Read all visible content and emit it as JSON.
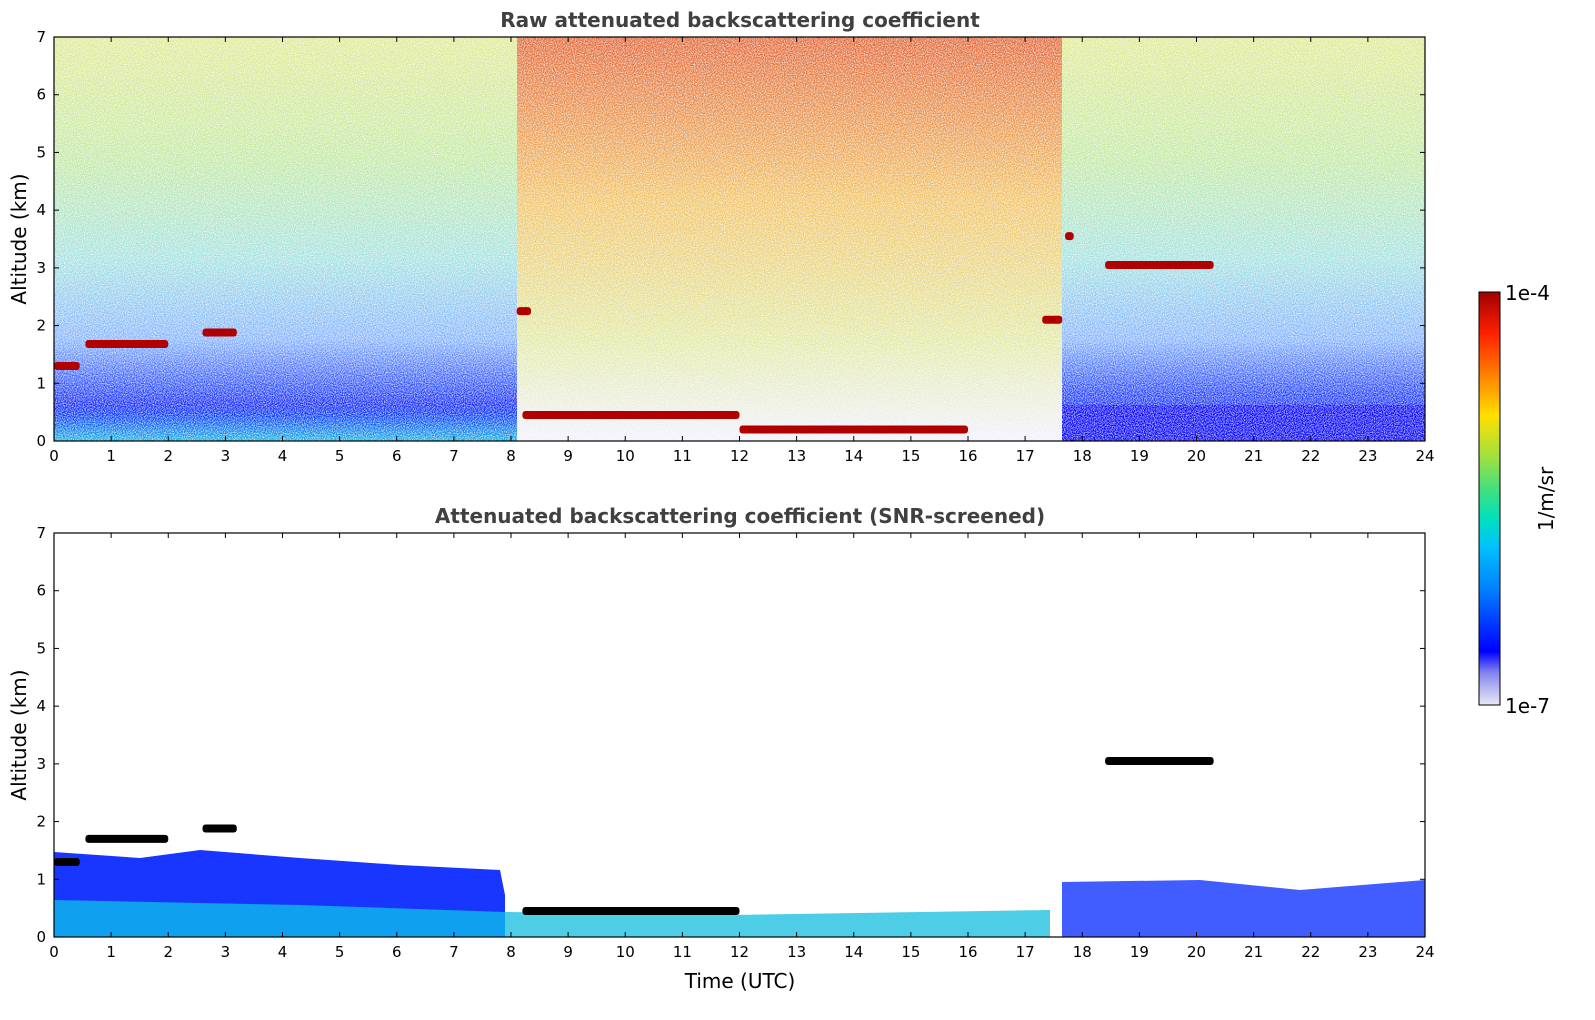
{
  "chart_data": [
    {
      "type": "heatmap",
      "title": "Raw attenuated backscattering coefficient",
      "xlabel": "",
      "ylabel": "Altitude (km)",
      "xlim": [
        0,
        24
      ],
      "ylim": [
        0,
        7
      ],
      "xticks": [
        "0",
        "1",
        "2",
        "3",
        "4",
        "5",
        "6",
        "7",
        "8",
        "9",
        "10",
        "11",
        "12",
        "13",
        "14",
        "15",
        "16",
        "17",
        "18",
        "19",
        "20",
        "21",
        "22",
        "23",
        "24"
      ],
      "yticks": [
        "0",
        "1",
        "2",
        "3",
        "4",
        "5",
        "6",
        "7"
      ],
      "grid": false,
      "features": [
        {
          "kind": "cloud_layer",
          "x_start": 0.0,
          "x_end": 0.45,
          "altitude_km": 1.3
        },
        {
          "kind": "cloud_layer",
          "x_start": 0.55,
          "x_end": 2.0,
          "altitude_km": 1.68
        },
        {
          "kind": "cloud_layer",
          "x_start": 2.6,
          "x_end": 3.2,
          "altitude_km": 1.88
        },
        {
          "kind": "cloud_layer",
          "x_start": 8.1,
          "x_end": 8.35,
          "altitude_km": 2.25
        },
        {
          "kind": "boundary_layer_top",
          "x_start": 8.2,
          "x_end": 12.0,
          "altitude_km": 0.45
        },
        {
          "kind": "cloud_layer",
          "x_start": 12.0,
          "x_end": 16.0,
          "altitude_km": 0.2
        },
        {
          "kind": "cloud_layer",
          "x_start": 17.3,
          "x_end": 17.65,
          "altitude_km": 2.1
        },
        {
          "kind": "cloud_layer",
          "x_start": 17.7,
          "x_end": 17.85,
          "altitude_km": 3.55
        },
        {
          "kind": "cloud_layer",
          "x_start": 18.4,
          "x_end": 20.3,
          "altitude_km": 3.05
        }
      ]
    },
    {
      "type": "heatmap",
      "title": "Attenuated backscattering coefficient (SNR-screened)",
      "xlabel": "Time (UTC)",
      "ylabel": "Altitude (km)",
      "xlim": [
        0,
        24
      ],
      "ylim": [
        0,
        7
      ],
      "xticks": [
        "0",
        "1",
        "2",
        "3",
        "4",
        "5",
        "6",
        "7",
        "8",
        "9",
        "10",
        "11",
        "12",
        "13",
        "14",
        "15",
        "16",
        "17",
        "18",
        "19",
        "20",
        "21",
        "22",
        "23",
        "24"
      ],
      "yticks": [
        "0",
        "1",
        "2",
        "3",
        "4",
        "5",
        "6",
        "7"
      ],
      "grid": false,
      "features": [
        {
          "kind": "cloud_layer",
          "x_start": 0.0,
          "x_end": 0.45,
          "altitude_km": 1.3
        },
        {
          "kind": "cloud_layer",
          "x_start": 0.55,
          "x_end": 2.0,
          "altitude_km": 1.7
        },
        {
          "kind": "cloud_layer",
          "x_start": 2.6,
          "x_end": 3.2,
          "altitude_km": 1.88
        },
        {
          "kind": "boundary_layer_top",
          "x_start": 8.2,
          "x_end": 12.0,
          "altitude_km": 0.45
        },
        {
          "kind": "cloud_layer",
          "x_start": 18.4,
          "x_end": 20.3,
          "altitude_km": 3.05
        }
      ]
    }
  ],
  "colorbar": {
    "label": "1/m/sr",
    "max_label": "1e-4",
    "min_label": "1e-7",
    "scale": "log",
    "colormap": [
      "#e8e8f8",
      "#b8b8f0",
      "#8080f0",
      "#0000ff",
      "#0080ff",
      "#00c0ff",
      "#00e0c0",
      "#40e080",
      "#a0e040",
      "#ffe000",
      "#ff8000",
      "#ff2000",
      "#a00000"
    ]
  }
}
